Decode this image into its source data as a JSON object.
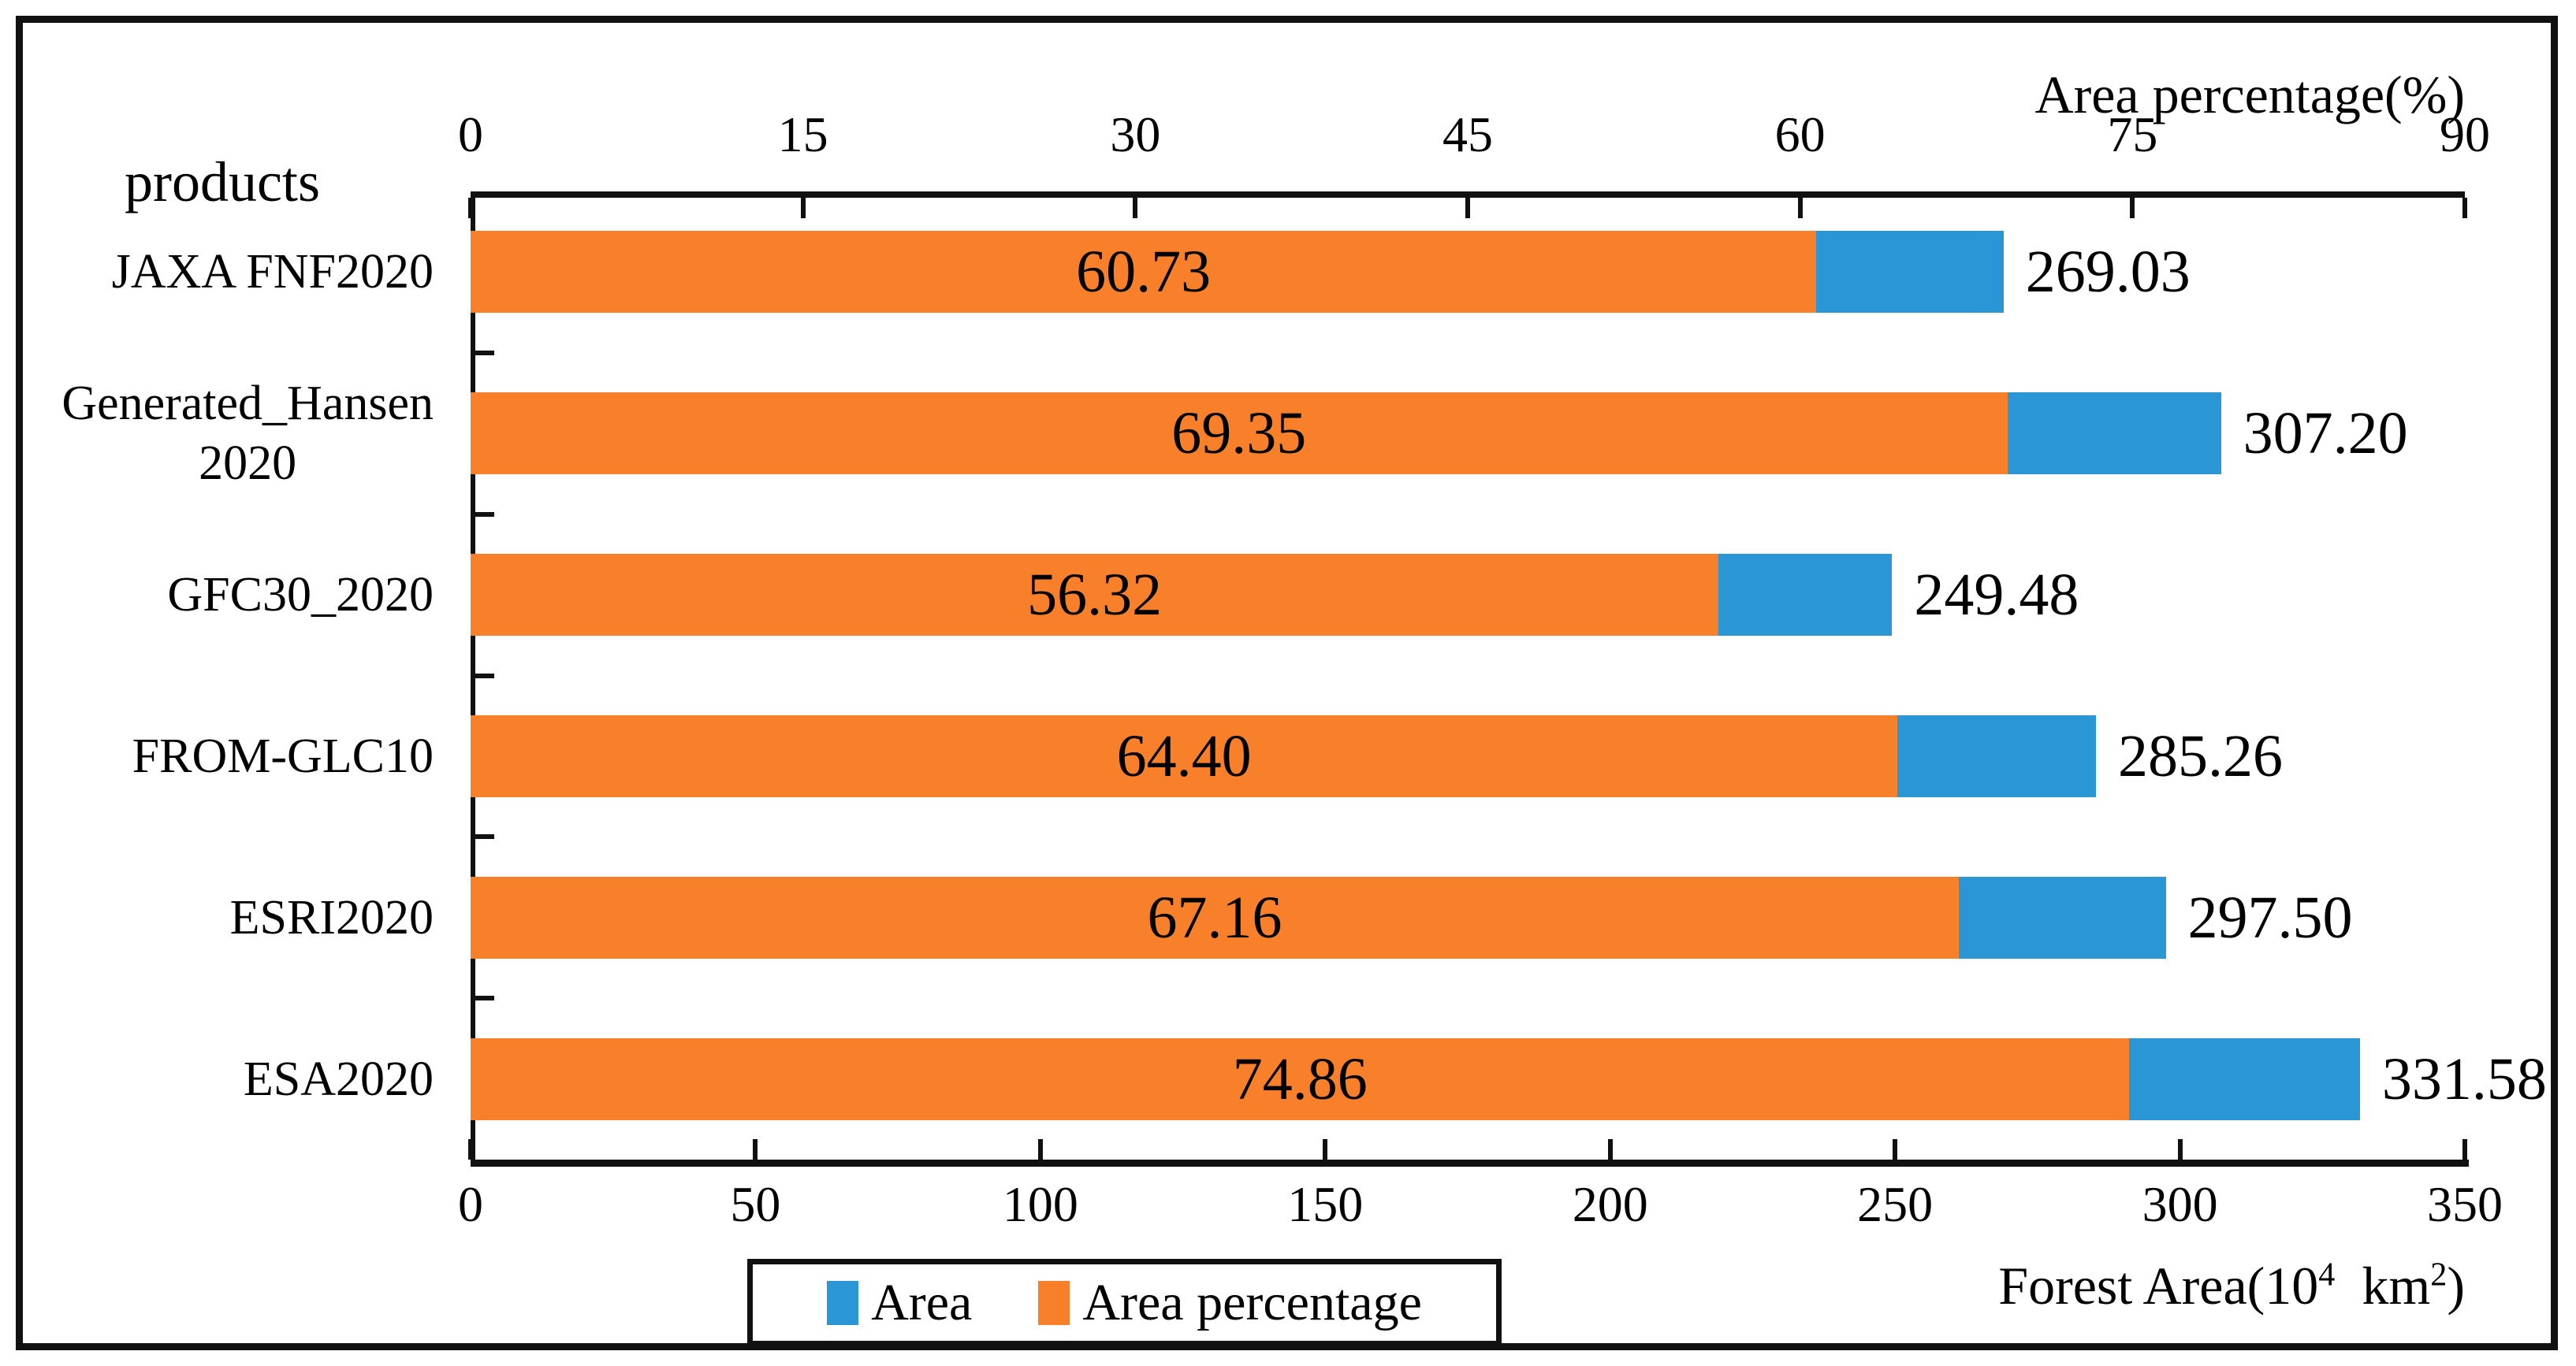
{
  "figure": {
    "products_label": "products",
    "top_axis_title": "Area percentage(%)",
    "bottom_axis_title": {
      "pre": "Forest Area(10",
      "exp1": "4",
      "mid": "  km",
      "exp2": "2",
      "post": ")"
    },
    "border_color": "#111111"
  },
  "chart_data": {
    "type": "bar",
    "orientation": "horizontal",
    "title": "",
    "categories": [
      "JAXA FNF2020",
      "Generated_Hansen\n2020",
      "GFC30_2020",
      "FROM-GLC10",
      "ESRI2020",
      "ESA2020"
    ],
    "series": [
      {
        "name": "Area",
        "axis": "bottom",
        "unit": "10^4 km^2",
        "color": "#2b96d5",
        "values": [
          269.03,
          307.2,
          249.48,
          285.26,
          297.5,
          331.58
        ],
        "labels": [
          "269.03",
          "307.20",
          "249.48",
          "285.26",
          "297.50",
          "331.58"
        ]
      },
      {
        "name": "Area percentage",
        "axis": "top",
        "unit": "%",
        "color": "#f8802b",
        "values": [
          60.73,
          69.35,
          56.32,
          64.4,
          67.16,
          74.86
        ],
        "labels": [
          "60.73",
          "69.35",
          "56.32",
          "64.40",
          "67.16",
          "74.86"
        ]
      }
    ],
    "top_axis": {
      "title": "Area percentage(%)",
      "min": 0,
      "max": 90,
      "ticks": [
        0,
        15,
        30,
        45,
        60,
        75,
        90
      ]
    },
    "bottom_axis": {
      "title": "Forest Area(10⁴ km²)",
      "min": 0,
      "max": 350,
      "ticks": [
        0,
        50,
        100,
        150,
        200,
        250,
        300,
        350
      ]
    },
    "left_axis_title": "products",
    "legend": {
      "position": "bottom",
      "border": true,
      "entries": [
        {
          "label": "Area",
          "color": "#2b96d5"
        },
        {
          "label": "Area percentage",
          "color": "#f8802b"
        }
      ]
    },
    "grid": false,
    "ink_color": "#111111"
  }
}
